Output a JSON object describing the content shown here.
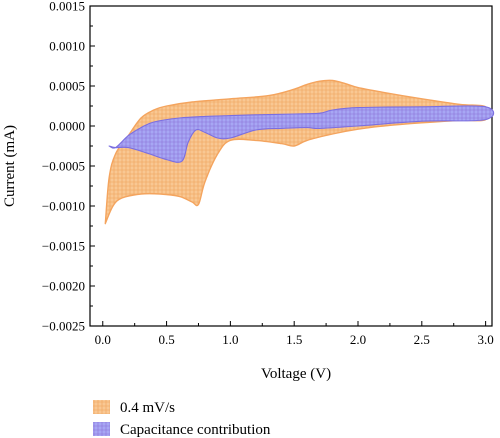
{
  "chart_data": {
    "type": "area",
    "title": "",
    "xlabel": "Voltage (V)",
    "ylabel": "Current (mA)",
    "xlim": [
      -0.1,
      3.05
    ],
    "ylim": [
      -0.0025,
      0.0015
    ],
    "x_ticks": [
      0.0,
      0.5,
      1.0,
      1.5,
      2.0,
      2.5,
      3.0
    ],
    "x_tick_labels": [
      "0.0",
      "0.5",
      "1.0",
      "1.5",
      "2.0",
      "2.5",
      "3.0"
    ],
    "y_ticks": [
      0.0015,
      0.001,
      0.0005,
      0.0,
      -0.0005,
      -0.001,
      -0.0015,
      -0.002,
      -0.0025
    ],
    "y_tick_labels": [
      "0.0015",
      "0.0010",
      "0.0005",
      "0.0000",
      "−0.0005",
      "−0.0010",
      "−0.0015",
      "−0.0020",
      "−0.0025"
    ],
    "grid": false,
    "legend_placement": "bottom-left, below plot",
    "series": [
      {
        "name": "0.4 mV/s",
        "fill_color": "#f9c893",
        "edge_color": "#f4a45e",
        "hatch_color": "#eea25a",
        "anodic": [
          [
            0.02,
            -0.00122
          ],
          [
            0.05,
            -0.00065
          ],
          [
            0.1,
            -0.00035
          ],
          [
            0.2,
            -0.00012
          ],
          [
            0.3,
            0.0001
          ],
          [
            0.4,
            0.0002
          ],
          [
            0.5,
            0.00025
          ],
          [
            0.7,
            0.0003
          ],
          [
            1.0,
            0.00034
          ],
          [
            1.3,
            0.00038
          ],
          [
            1.5,
            0.00046
          ],
          [
            1.6,
            0.00052
          ],
          [
            1.7,
            0.00056
          ],
          [
            1.8,
            0.00057
          ],
          [
            1.9,
            0.00053
          ],
          [
            2.0,
            0.00048
          ],
          [
            2.2,
            0.00042
          ],
          [
            2.5,
            0.00034
          ],
          [
            2.8,
            0.00027
          ],
          [
            3.0,
            0.00024
          ]
        ],
        "cathodic": [
          [
            3.0,
            8e-05
          ],
          [
            2.8,
            7e-05
          ],
          [
            2.5,
            4e-05
          ],
          [
            2.2,
            0.0
          ],
          [
            2.0,
            -4e-05
          ],
          [
            1.8,
            -0.0001
          ],
          [
            1.6,
            -0.00018
          ],
          [
            1.5,
            -0.00025
          ],
          [
            1.4,
            -0.00022
          ],
          [
            1.2,
            -0.00018
          ],
          [
            1.0,
            -0.00018
          ],
          [
            0.9,
            -0.00035
          ],
          [
            0.8,
            -0.0007
          ],
          [
            0.75,
            -0.00098
          ],
          [
            0.7,
            -0.00095
          ],
          [
            0.6,
            -0.00088
          ],
          [
            0.45,
            -0.00085
          ],
          [
            0.3,
            -0.00085
          ],
          [
            0.15,
            -0.0009
          ],
          [
            0.08,
            -0.001
          ],
          [
            0.02,
            -0.00122
          ]
        ]
      },
      {
        "name": "Capacitance contribution",
        "fill_color": "#a7a7f4",
        "edge_color": "#7b6fe0",
        "hatch_color": "#8d72d8",
        "upper": [
          [
            0.05,
            -0.00025
          ],
          [
            0.1,
            -0.00027
          ],
          [
            0.2,
            -0.00012
          ],
          [
            0.3,
            -2e-05
          ],
          [
            0.4,
            5e-05
          ],
          [
            0.6,
            0.0001
          ],
          [
            0.8,
            0.00012
          ],
          [
            1.0,
            0.00013
          ],
          [
            1.2,
            0.00014
          ],
          [
            1.5,
            0.00015
          ],
          [
            1.7,
            0.00016
          ],
          [
            1.8,
            0.0002
          ],
          [
            2.0,
            0.00023
          ],
          [
            2.5,
            0.00024
          ],
          [
            3.0,
            0.00024
          ]
        ],
        "lower": [
          [
            3.0,
            8e-05
          ],
          [
            2.5,
            6e-05
          ],
          [
            2.0,
            0.0
          ],
          [
            1.7,
            -3e-05
          ],
          [
            1.6,
            -2e-05
          ],
          [
            1.4,
            -3e-05
          ],
          [
            1.2,
            -5e-05
          ],
          [
            1.0,
            -0.00015
          ],
          [
            0.9,
            -0.00015
          ],
          [
            0.8,
            -8e-05
          ],
          [
            0.73,
            -5e-05
          ],
          [
            0.67,
            -0.0002
          ],
          [
            0.62,
            -0.00044
          ],
          [
            0.5,
            -0.00042
          ],
          [
            0.35,
            -0.00034
          ],
          [
            0.2,
            -0.00027
          ],
          [
            0.1,
            -0.00027
          ],
          [
            0.05,
            -0.00025
          ]
        ]
      }
    ]
  }
}
